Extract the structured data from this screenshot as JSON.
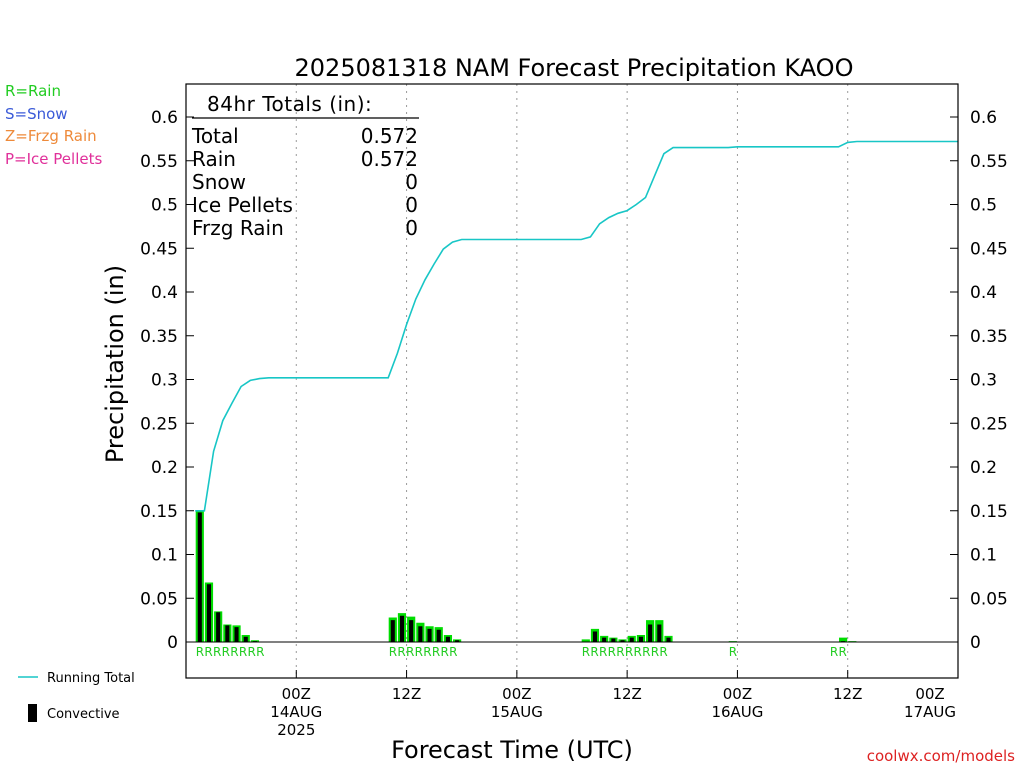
{
  "chart_data": {
    "type": "bar",
    "title": "2025081318 NAM Forecast Precipitation KAOO",
    "xlabel": "Forecast Time (UTC)",
    "ylabel": "Precipitation (in)",
    "ylim": [
      0,
      0.63
    ],
    "yticks": [
      "0",
      "0.05",
      "0.1",
      "0.15",
      "0.2",
      "0.25",
      "0.3",
      "0.35",
      "0.4",
      "0.45",
      "0.5",
      "0.55",
      "0.6"
    ],
    "xlim_hours": [
      -6,
      78
    ],
    "grid": "vertical dotted at 12Z/00Z",
    "xticks": [
      {
        "hour": 6,
        "lines": [
          "00Z",
          "14AUG",
          "2025"
        ]
      },
      {
        "hour": 18,
        "lines": [
          "12Z"
        ]
      },
      {
        "hour": 30,
        "lines": [
          "00Z",
          "15AUG"
        ]
      },
      {
        "hour": 42,
        "lines": [
          "12Z"
        ]
      },
      {
        "hour": 54,
        "lines": [
          "00Z",
          "16AUG"
        ]
      },
      {
        "hour": 66,
        "lines": [
          "12Z"
        ]
      },
      {
        "hour": 78,
        "lines": [
          "00Z",
          "17AUG"
        ]
      }
    ],
    "bar_hours": [
      -5,
      -4,
      -3,
      -2,
      -1,
      0,
      1,
      2,
      3,
      4,
      5,
      6,
      7,
      8,
      9,
      10,
      11,
      12,
      13,
      14,
      15,
      16,
      17,
      18,
      19,
      20,
      21,
      22,
      23,
      24,
      25,
      26,
      27,
      28,
      29,
      30,
      31,
      32,
      33,
      34,
      35,
      36,
      37,
      38,
      39,
      40,
      41,
      42,
      43,
      44,
      45,
      46,
      47,
      48,
      49,
      50,
      51,
      52,
      53,
      54,
      55,
      56,
      57,
      58,
      59,
      60,
      61,
      62,
      63,
      64,
      65,
      66,
      67,
      68,
      69,
      70,
      71,
      72,
      73,
      74,
      75,
      76,
      77
    ],
    "series": [
      {
        "name": "Running Total",
        "values": [
          0.15,
          0.218,
          0.253,
          0.273,
          0.292,
          0.299,
          0.301,
          0.302,
          0.302,
          0.302,
          0.302,
          0.302,
          0.302,
          0.302,
          0.302,
          0.302,
          0.302,
          0.302,
          0.302,
          0.302,
          0.302,
          0.33,
          0.363,
          0.392,
          0.414,
          0.432,
          0.449,
          0.457,
          0.46,
          0.46,
          0.46,
          0.46,
          0.46,
          0.46,
          0.46,
          0.46,
          0.46,
          0.46,
          0.46,
          0.46,
          0.46,
          0.46,
          0.463,
          0.478,
          0.485,
          0.49,
          0.493,
          0.5,
          0.508,
          0.533,
          0.558,
          0.565,
          0.565,
          0.565,
          0.565,
          0.565,
          0.565,
          0.565,
          0.566,
          0.566,
          0.566,
          0.566,
          0.566,
          0.566,
          0.566,
          0.566,
          0.566,
          0.566,
          0.566,
          0.566,
          0.571,
          0.572,
          0.572,
          0.572,
          0.572,
          0.572,
          0.572,
          0.572,
          0.572,
          0.572,
          0.572,
          0.572,
          0.572
        ]
      },
      {
        "name": "Hourly Precip",
        "values": [
          0.15,
          0.068,
          0.035,
          0.02,
          0.019,
          0.008,
          0.002,
          0,
          0,
          0,
          0,
          0,
          0,
          0,
          0,
          0,
          0,
          0,
          0,
          0,
          0,
          0.028,
          0.033,
          0.029,
          0.022,
          0.018,
          0.017,
          0.008,
          0.003,
          0,
          0,
          0,
          0,
          0,
          0,
          0,
          0,
          0,
          0,
          0,
          0,
          0,
          0.003,
          0.015,
          0.007,
          0.005,
          0.003,
          0.007,
          0.008,
          0.025,
          0.025,
          0.007,
          0,
          0,
          0,
          0,
          0,
          0,
          0.001,
          0,
          0,
          0,
          0,
          0,
          0,
          0,
          0,
          0,
          0,
          0,
          0.005,
          0.001,
          0,
          0,
          0,
          0,
          0,
          0,
          0,
          0,
          0,
          0,
          0
        ]
      },
      {
        "name": "Convective",
        "values": [
          0.148,
          0.066,
          0.034,
          0.019,
          0.017,
          0.006,
          0.001,
          0,
          0,
          0,
          0,
          0,
          0,
          0,
          0,
          0,
          0,
          0,
          0,
          0,
          0,
          0.025,
          0.03,
          0.025,
          0.018,
          0.015,
          0.014,
          0.006,
          0.002,
          0,
          0,
          0,
          0,
          0,
          0,
          0,
          0,
          0,
          0,
          0,
          0,
          0,
          0,
          0.012,
          0.005,
          0.004,
          0.002,
          0.005,
          0.006,
          0.02,
          0.02,
          0.005,
          0,
          0,
          0,
          0,
          0,
          0,
          0,
          0,
          0,
          0,
          0,
          0,
          0,
          0,
          0,
          0,
          0,
          0,
          0.001,
          0,
          0,
          0,
          0,
          0,
          0,
          0,
          0,
          0,
          0,
          0,
          0
        ]
      }
    ],
    "type_markers": [
      {
        "start_hour": -5,
        "text": "RRRRRRRR"
      },
      {
        "start_hour": 16,
        "text": "RRRRRRRR"
      },
      {
        "start_hour": 37,
        "text": "RRRRRRRRRR"
      },
      {
        "start_hour": 53,
        "text": "R"
      },
      {
        "start_hour": 64,
        "text": "RR"
      }
    ],
    "totals_box": {
      "header": "84hr Totals (in):",
      "rows": [
        {
          "label": "Total",
          "value": "0.572"
        },
        {
          "label": "Rain",
          "value": "0.572"
        },
        {
          "label": "Snow",
          "value": "0"
        },
        {
          "label": "Ice Pellets",
          "value": "0"
        },
        {
          "label": "Frzg Rain",
          "value": "0"
        }
      ]
    },
    "type_legend": [
      {
        "text": "R=Rain",
        "color": "#22cc22"
      },
      {
        "text": "S=Snow",
        "color": "#3a5ad8"
      },
      {
        "text": "Z=Frzg Rain",
        "color": "#ee8a3a"
      },
      {
        "text": "P=Ice Pellets",
        "color": "#e0309a"
      }
    ],
    "series_legend": [
      {
        "text": "Running Total",
        "color": "#18c6c6"
      },
      {
        "text": "Convective",
        "color": "#000000"
      }
    ],
    "colors": {
      "running_total": "#18c6c6",
      "precip_bar": "#00dd00",
      "convective_bar": "#000000",
      "marker": "#22cc22"
    },
    "credit": "coolwx.com/models"
  }
}
